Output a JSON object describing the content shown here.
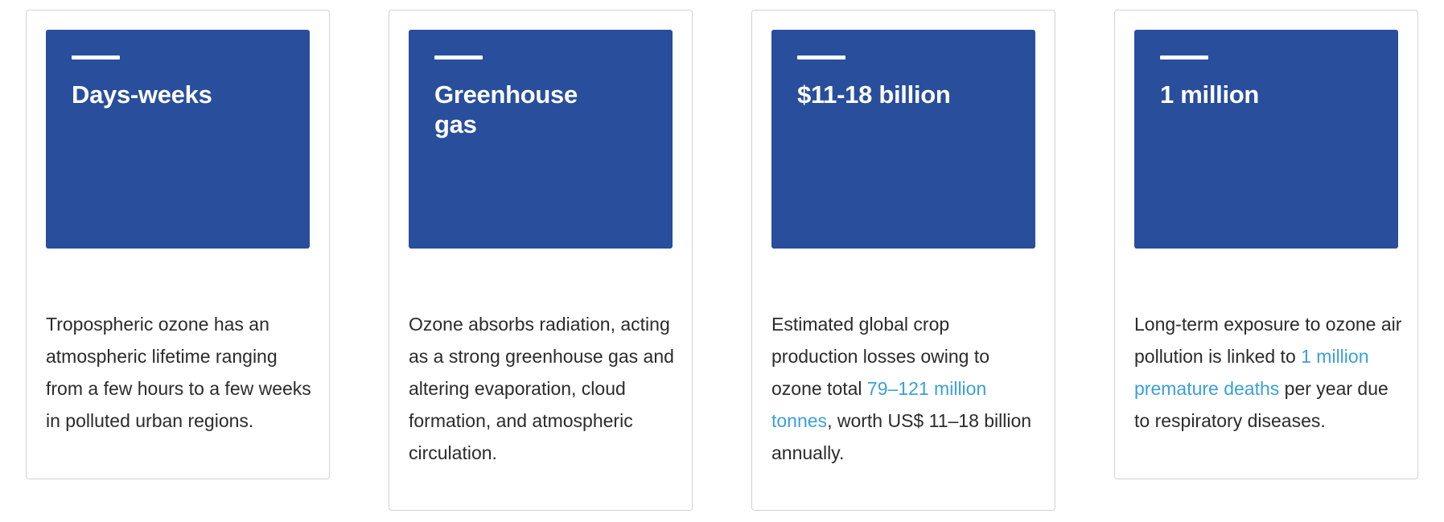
{
  "cards": [
    {
      "headline": "Days-weeks",
      "body": "Tropospheric ozone has an atmospheric lifetime ranging from a few hours to a few weeks in polluted urban regions."
    },
    {
      "headline": "Greenhouse gas",
      "body": "Ozone absorbs radiation, acting as a strong greenhouse gas and altering evaporation, cloud formation, and atmospheric circulation."
    },
    {
      "headline": "$11-18 billion",
      "body_before": "Estimated global crop production losses owing to ozone total ",
      "body_link": "79–121 million tonnes",
      "body_after": ", worth US$ 11–18 billion annually."
    },
    {
      "headline": "1 million",
      "body_before": "Long-term exposure to ozone air pollution is linked to ",
      "body_link": "1 million premature deaths",
      "body_after": " per year due to respiratory diseases."
    }
  ],
  "colors": {
    "panel": "#284e9c",
    "link": "#3aa0d8",
    "text": "#2b2b2b",
    "border": "#cfd3d8"
  }
}
